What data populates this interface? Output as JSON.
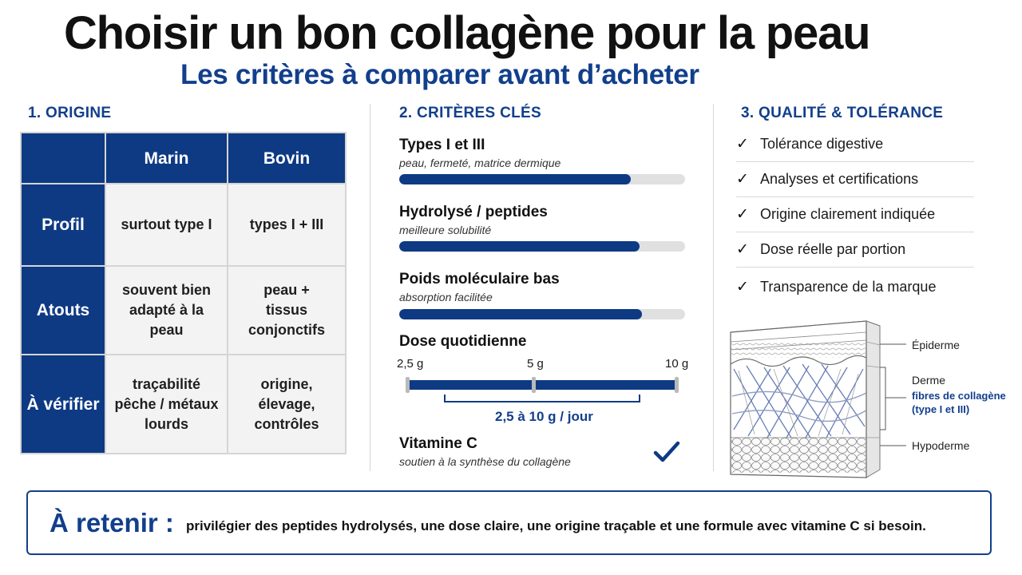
{
  "title": "Choisir un bon collagène pour la peau",
  "subtitle": "Les critères à comparer avant d’acheter",
  "origin": {
    "section_title": "1. ORIGINE",
    "columns": [
      "Marin",
      "Bovin"
    ],
    "rows": [
      {
        "label": "Profil",
        "marin": "surtout type I",
        "bovin": "types I + III"
      },
      {
        "label": "Atouts",
        "marin": "souvent bien adapté à la peau",
        "bovin": "peau + tissus conjonctifs"
      },
      {
        "label": "À vérifier",
        "marin": "traçabilité pêche / métaux lourds",
        "bovin": "origine, élevage, contrôles"
      }
    ]
  },
  "criteria": {
    "section_title": "2. CRITÈRES CLÉS",
    "items": [
      {
        "title": "Types I et III",
        "subtitle": "peau, fermeté, matrice dermique",
        "level": 0.81
      },
      {
        "title": "Hydrolysé / peptides",
        "subtitle": "meilleure solubilité",
        "level": 0.84
      },
      {
        "title": "Poids moléculaire bas",
        "subtitle": "absorption facilitée",
        "level": 0.85
      }
    ],
    "dose": {
      "title": "Dose quotidienne",
      "ticks": [
        "2,5 g",
        "5 g",
        "10 g"
      ],
      "range_label": "2,5 à 10 g / jour"
    },
    "vitamin": {
      "title": "Vitamine C",
      "subtitle": "soutien à la synthèse du collagène",
      "icon": "checkmark-icon"
    }
  },
  "quality": {
    "section_title": "3. QUALITÉ & TOLÉRANCE",
    "items": [
      "Tolérance digestive",
      "Analyses et certifications",
      "Origine clairement indiquée",
      "Dose réelle par portion",
      "Transparence de la marque"
    ],
    "check_glyph": "✓",
    "skin_labels": {
      "epidermis": "Épiderme",
      "dermis": "Derme",
      "fibers_line1": "fibres de collagène",
      "fibers_line2": "(type I et III)",
      "hypodermis": "Hypoderme"
    }
  },
  "retain": {
    "label": "À retenir :",
    "text": "privilégier des peptides hydrolysés, une dose claire, une origine traçable et une formule avec vitamine C si besoin."
  },
  "colors": {
    "accent": "#0e3a84",
    "subtitle": "#123f8c",
    "table_bg": "#f3f3f3",
    "bar_track": "#e0e0e0"
  }
}
